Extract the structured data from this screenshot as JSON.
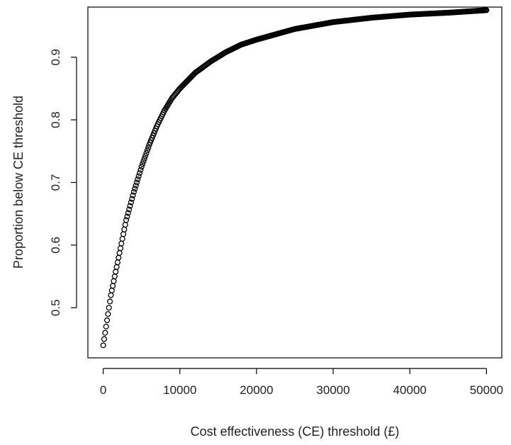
{
  "chart_data": {
    "type": "scatter",
    "title": "",
    "xlabel": "Cost effectiveness (CE) threshold (£)",
    "ylabel": "Proportion below CE threshold",
    "xlim": [
      -2000,
      52000
    ],
    "ylim": [
      0.42,
      0.98
    ],
    "xticks": [
      0,
      10000,
      20000,
      30000,
      40000,
      50000
    ],
    "yticks": [
      0.5,
      0.6,
      0.7,
      0.8,
      0.9
    ],
    "xtick_labels": [
      "0",
      "10000",
      "20000",
      "30000",
      "40000",
      "50000"
    ],
    "ytick_labels": [
      "0.5",
      "0.6",
      "0.7",
      "0.8",
      "0.9"
    ],
    "grid": false,
    "marker": "open-circle",
    "color": "#000000",
    "series": [
      {
        "x": [
          0,
          1000,
          2000,
          3000,
          4000,
          5000,
          6000,
          7000,
          8000,
          9000,
          10000,
          12000,
          14000,
          16000,
          18000,
          20000,
          25000,
          30000,
          35000,
          40000,
          45000,
          50000
        ],
        "y": [
          0.44,
          0.52,
          0.58,
          0.64,
          0.685,
          0.725,
          0.76,
          0.79,
          0.815,
          0.835,
          0.85,
          0.875,
          0.893,
          0.908,
          0.92,
          0.928,
          0.945,
          0.956,
          0.963,
          0.968,
          0.971,
          0.975
        ]
      }
    ]
  }
}
